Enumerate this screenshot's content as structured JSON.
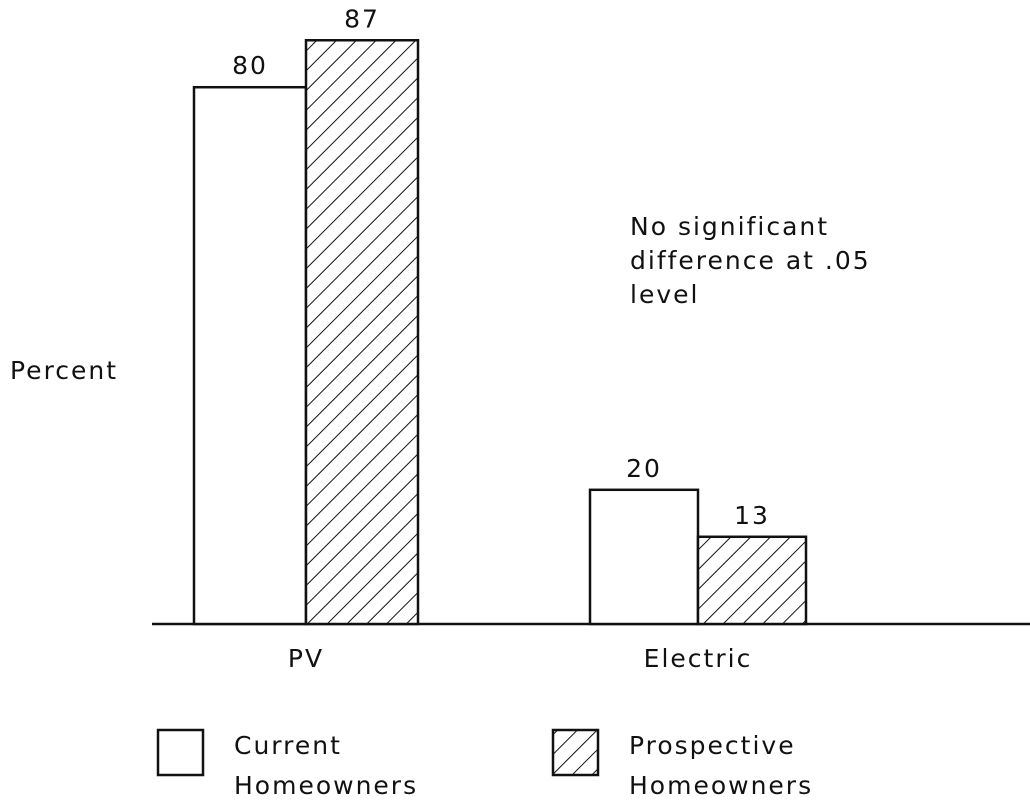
{
  "chart_data": {
    "type": "bar",
    "y_label": "Percent",
    "annotation": "No significant difference at .05 level",
    "categories": [
      "PV",
      "Electric"
    ],
    "series": [
      {
        "name": "Current Homeowners",
        "color": "#ffffff",
        "hatch": false,
        "values": [
          80,
          20
        ]
      },
      {
        "name": "Prospective Homeowners",
        "color": "#ffffff",
        "hatch": true,
        "values": [
          87,
          13
        ]
      }
    ],
    "ylim": [
      0,
      93
    ]
  }
}
